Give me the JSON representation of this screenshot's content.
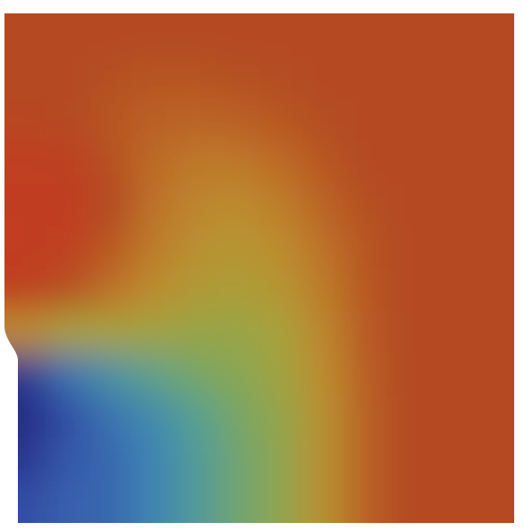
{
  "chart_data": {
    "type": "heatmap",
    "tick_labels": false,
    "value_range": [
      0,
      1
    ],
    "cells": [
      [
        0.9,
        0.9,
        0.9,
        0.9,
        0.9,
        0.9,
        0.9,
        0.9,
        0.9,
        0.9,
        0.9,
        0.9
      ],
      [
        0.9,
        0.9,
        0.88,
        0.87,
        0.87,
        0.88,
        0.89,
        0.9,
        0.9,
        0.9,
        0.9,
        0.9
      ],
      [
        0.92,
        0.9,
        0.86,
        0.83,
        0.82,
        0.83,
        0.86,
        0.89,
        0.9,
        0.9,
        0.9,
        0.9
      ],
      [
        0.96,
        0.95,
        0.88,
        0.8,
        0.76,
        0.76,
        0.8,
        0.86,
        0.9,
        0.9,
        0.9,
        0.9
      ],
      [
        0.97,
        0.97,
        0.9,
        0.78,
        0.72,
        0.7,
        0.74,
        0.82,
        0.88,
        0.9,
        0.9,
        0.9
      ],
      [
        0.98,
        0.96,
        0.86,
        0.75,
        0.68,
        0.66,
        0.7,
        0.78,
        0.87,
        0.9,
        0.9,
        0.9
      ],
      [
        0.95,
        0.88,
        0.78,
        0.7,
        0.64,
        0.62,
        0.66,
        0.75,
        0.86,
        0.9,
        0.9,
        0.9
      ],
      [
        0.7,
        0.6,
        0.6,
        0.58,
        0.56,
        0.56,
        0.6,
        0.72,
        0.85,
        0.9,
        0.9,
        0.9
      ],
      [
        0.08,
        0.25,
        0.35,
        0.42,
        0.48,
        0.52,
        0.58,
        0.7,
        0.84,
        0.9,
        0.9,
        0.9
      ],
      [
        0.05,
        0.15,
        0.25,
        0.32,
        0.4,
        0.48,
        0.55,
        0.68,
        0.83,
        0.9,
        0.9,
        0.9
      ],
      [
        0.08,
        0.18,
        0.22,
        0.3,
        0.38,
        0.46,
        0.54,
        0.68,
        0.83,
        0.9,
        0.9,
        0.9
      ],
      [
        0.15,
        0.2,
        0.22,
        0.3,
        0.38,
        0.46,
        0.54,
        0.68,
        0.83,
        0.9,
        0.9,
        0.9
      ]
    ]
  }
}
